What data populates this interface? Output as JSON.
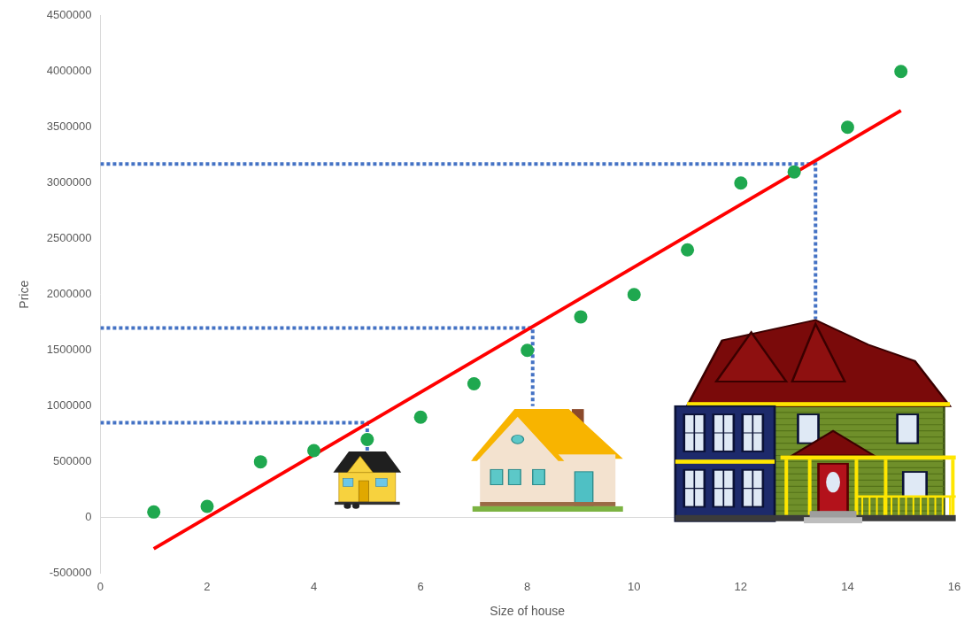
{
  "chart_data": {
    "type": "scatter",
    "x_label": "Size of house",
    "y_label": "Price",
    "xlim": [
      0,
      16
    ],
    "xticks": [
      0,
      2,
      4,
      6,
      8,
      10,
      12,
      14,
      16
    ],
    "ylim": [
      -500000,
      4500000
    ],
    "yticks": [
      -500000,
      0,
      500000,
      1000000,
      1500000,
      2000000,
      2500000,
      3000000,
      3500000,
      4000000,
      4500000
    ],
    "grid": false,
    "series": [
      {
        "type": "scatter",
        "marker": "circle",
        "color": "#1fa84f",
        "x": [
          1,
          2,
          3,
          4,
          5,
          6,
          7,
          8,
          9,
          10,
          11,
          12,
          13,
          14,
          15
        ],
        "values": [
          50000,
          100000,
          500000,
          600000,
          700000,
          900000,
          1200000,
          1500000,
          1800000,
          2000000,
          2400000,
          3000000,
          3100000,
          3500000,
          4000000
        ]
      },
      {
        "type": "line",
        "line_style": "solid",
        "color": "#ff0000",
        "x": [
          1,
          15
        ],
        "values": [
          -280000,
          3650000
        ]
      },
      {
        "type": "line",
        "line_style": "dotted",
        "color": "#4472c4",
        "x": [
          0,
          5,
          5
        ],
        "values": [
          850000,
          850000,
          600000
        ]
      },
      {
        "type": "line",
        "line_style": "dotted",
        "color": "#4472c4",
        "x": [
          0,
          8.1,
          8.1
        ],
        "values": [
          1700000,
          1700000,
          1000000
        ]
      },
      {
        "type": "line",
        "line_style": "dotted",
        "color": "#4472c4",
        "x": [
          0,
          13.4,
          13.4
        ],
        "values": [
          3170000,
          3170000,
          1780000
        ]
      }
    ]
  }
}
